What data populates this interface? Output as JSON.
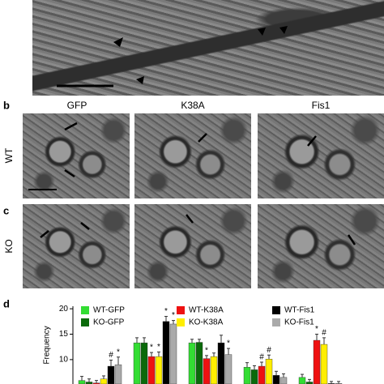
{
  "panel_labels": [
    "b",
    "c",
    "d"
  ],
  "columns": [
    "GFP",
    "K38A",
    "Fis1"
  ],
  "rows": [
    "WT",
    "KO"
  ],
  "chart_data": {
    "type": "bar",
    "y_label": "Frequency",
    "categories": [
      null,
      null,
      null,
      null,
      null
    ],
    "ylim": [
      5.2,
      20.5
    ],
    "yticks": [
      10,
      15,
      20
    ],
    "series": [
      {
        "name": "WT-GFP",
        "color": "#33dd33",
        "values": [
          5.9,
          13.3,
          13.3,
          8.5,
          6.5
        ],
        "errors": [
          0.8,
          1,
          0.7,
          0.9,
          0.6
        ],
        "markers": [
          null,
          null,
          null,
          null,
          null
        ]
      },
      {
        "name": "KO-GFP",
        "color": "#0a6a0a",
        "values": [
          5.6,
          13.3,
          13.4,
          8,
          5.6
        ],
        "errors": [
          0.6,
          1,
          0.6,
          0.8,
          0.5
        ],
        "markers": [
          null,
          null,
          null,
          null,
          null
        ]
      },
      {
        "name": "WT-K38A",
        "color": "#ee1111",
        "values": [
          5.4,
          10.6,
          10.2,
          8.7,
          13.8
        ],
        "errors": [
          0.5,
          0.8,
          0.6,
          0.8,
          1.2
        ],
        "markers": [
          null,
          "*",
          "*",
          "#",
          "*"
        ]
      },
      {
        "name": "KO-K38A",
        "color": "#ffee00",
        "values": [
          6.2,
          10.6,
          10.6,
          10.1,
          13
        ],
        "errors": [
          0.6,
          0.9,
          0.7,
          0.8,
          1.3
        ],
        "markers": [
          null,
          "*",
          null,
          "#",
          "#"
        ]
      },
      {
        "name": "WT-Fis1",
        "color": "#000000",
        "values": [
          8.7,
          17.5,
          13.3,
          6.9,
          5.3
        ],
        "errors": [
          1.2,
          1,
          1.5,
          0.8,
          0.4
        ],
        "markers": [
          "#",
          "*",
          null,
          null,
          null
        ]
      },
      {
        "name": "KO-Fis1",
        "color": "#aaaaaa",
        "values": [
          9,
          17,
          11,
          6.5,
          5.3
        ],
        "errors": [
          1.5,
          0.7,
          1.2,
          0.7,
          0.4
        ],
        "markers": [
          "*",
          "*",
          "*",
          null,
          null
        ]
      }
    ]
  }
}
